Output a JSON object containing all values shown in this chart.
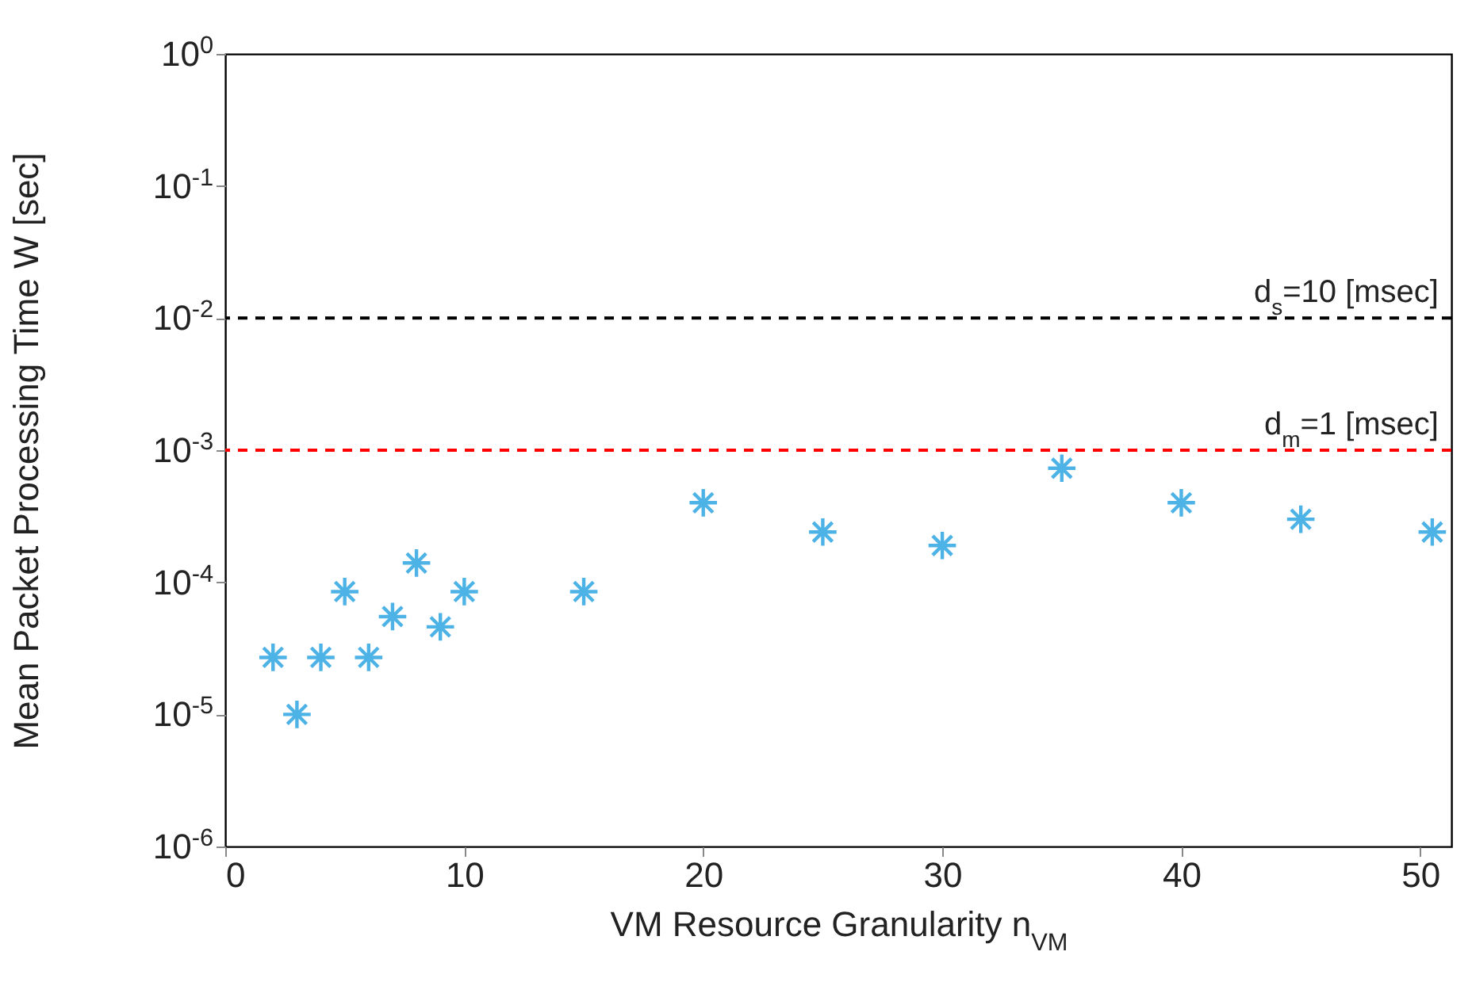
{
  "chart_data": {
    "type": "scatter",
    "xlabel": "VM Resource Granularity n$_{VM}$",
    "ylabel": "Mean Packet Processing Time W [sec]",
    "x": [
      2,
      3,
      4,
      5,
      6,
      7,
      8,
      9,
      10,
      15,
      20,
      25,
      30,
      35,
      40,
      45,
      50.5
    ],
    "series": [
      {
        "color": "#4db3e6",
        "values": [
          2.7e-05,
          1e-05,
          2.7e-05,
          8.5e-05,
          2.7e-05,
          5.5e-05,
          0.00014,
          4.6e-05,
          8.5e-05,
          8.5e-05,
          0.0004,
          0.00024,
          0.00019,
          0.00073,
          0.0004,
          0.0003,
          0.00024
        ]
      }
    ],
    "xlim": [
      0,
      51.3
    ],
    "xticks": [
      0,
      10,
      20,
      30,
      40,
      50
    ],
    "ylim": [
      1e-06,
      1
    ],
    "yticks": [
      {
        "value": 1e-06,
        "label": "10$^{-6}$"
      },
      {
        "value": 1e-05,
        "label": "10$^{-5}$"
      },
      {
        "value": 0.0001,
        "label": "10$^{-4}$"
      },
      {
        "value": 0.001,
        "label": "10$^{-3}$"
      },
      {
        "value": 0.01,
        "label": "10$^{-2}$"
      },
      {
        "value": 0.1,
        "label": "10$^{-1}$"
      },
      {
        "value": 1,
        "label": "10$^{0}$"
      }
    ],
    "log": true,
    "grid": false,
    "marker": "cross",
    "ref_lines": [
      {
        "axis": "y",
        "value": 0.01,
        "label": "d$_{s}$=10 [msec]",
        "color": "#000000",
        "line_style": "dashed"
      },
      {
        "axis": "y",
        "value": 0.001,
        "label": "d$_{m}$=1 [msec]",
        "color": "#ff0000",
        "line_style": "dashed"
      }
    ]
  }
}
